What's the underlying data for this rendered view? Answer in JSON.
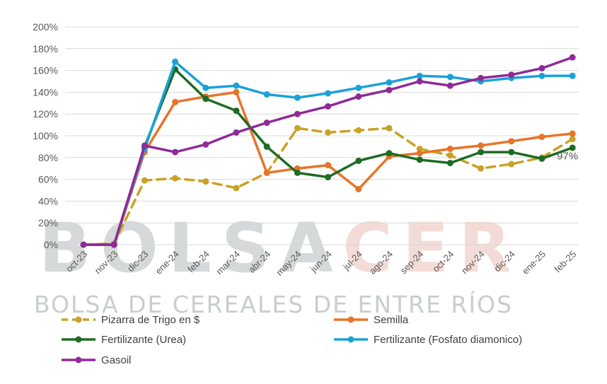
{
  "chart_data": {
    "type": "line",
    "categories": [
      "oct-23",
      "nov-23",
      "dic-23",
      "ene-24",
      "feb-24",
      "mar-24",
      "abr-24",
      "may-24",
      "jun-24",
      "jul-24",
      "ago-24",
      "sep-24",
      "oct-24",
      "nov-24",
      "dic-24",
      "ene-25",
      "feb-25"
    ],
    "ylim": [
      0,
      200
    ],
    "yticks": [
      "0%",
      "20%",
      "40%",
      "60%",
      "80%",
      "100%",
      "120%",
      "140%",
      "160%",
      "180%",
      "200%"
    ],
    "grid": true,
    "legend_position": "bottom",
    "series": [
      {
        "name": "Pizarra de Trigo en $",
        "color": "#c9a227",
        "dashed": true,
        "values": [
          0,
          1,
          59,
          61,
          58,
          52,
          66,
          107,
          103,
          105,
          107,
          88,
          82,
          70,
          74,
          80,
          97
        ]
      },
      {
        "name": "Semilla",
        "color": "#e8742a",
        "dashed": false,
        "values": [
          0,
          0,
          85,
          131,
          136,
          140,
          66,
          70,
          73,
          51,
          81,
          84,
          88,
          91,
          95,
          99,
          102
        ]
      },
      {
        "name": "Fertilizante (Urea)",
        "color": "#1f6b24",
        "dashed": false,
        "values": [
          0,
          0,
          90,
          161,
          134,
          123,
          90,
          66,
          62,
          77,
          84,
          78,
          75,
          85,
          85,
          79,
          89
        ]
      },
      {
        "name": "Fertilizante (Fosfato diamonico)",
        "color": "#1aa2d8",
        "dashed": false,
        "values": [
          0,
          0,
          88,
          168,
          144,
          146,
          138,
          135,
          139,
          144,
          149,
          155,
          154,
          150,
          153,
          155,
          155
        ]
      },
      {
        "name": "Gasoil",
        "color": "#8f2a96",
        "dashed": false,
        "values": [
          0,
          0,
          91,
          85,
          92,
          103,
          112,
          120,
          127,
          136,
          142,
          150,
          146,
          153,
          156,
          162,
          172
        ]
      }
    ],
    "annotations": [
      {
        "text": "97%",
        "series": "Pizarra de Trigo en $",
        "category": "feb-25"
      }
    ]
  },
  "watermark": {
    "part1": "BOLSA",
    "part2": "CER",
    "subtitle": "BOLSA DE CEREALES DE ENTRE RÍOS",
    "color1": "#d5d9d9",
    "color2": "#f3dcd7"
  }
}
